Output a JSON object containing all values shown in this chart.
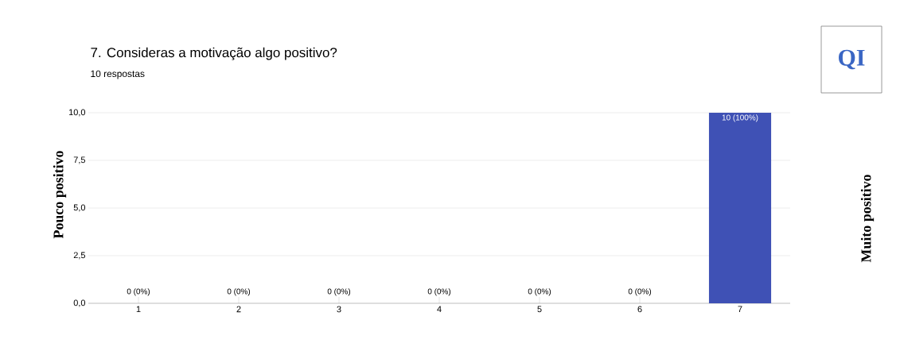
{
  "chart_data": {
    "type": "bar",
    "title": "7.  Consideras a motivação algo positivo?",
    "subtitle": "10 respostas",
    "categories": [
      "1",
      "2",
      "3",
      "4",
      "5",
      "6",
      "7"
    ],
    "values": [
      0,
      0,
      0,
      0,
      0,
      0,
      10
    ],
    "value_labels": [
      "0 (0%)",
      "0 (0%)",
      "0 (0%)",
      "0 (0%)",
      "0 (0%)",
      "0 (0%)",
      "10 (100%)"
    ],
    "color": "#3f51b5",
    "ylim": [
      0,
      10
    ],
    "yticks": [
      {
        "value": 0,
        "label": "0,0"
      },
      {
        "value": 2.5,
        "label": "2,5"
      },
      {
        "value": 5,
        "label": "5,0"
      },
      {
        "value": 7.5,
        "label": "7,5"
      },
      {
        "value": 10,
        "label": "10,0"
      }
    ],
    "grid": "y",
    "annotations": [
      "QI",
      "Pouco positivo",
      "Muito positivo"
    ]
  }
}
